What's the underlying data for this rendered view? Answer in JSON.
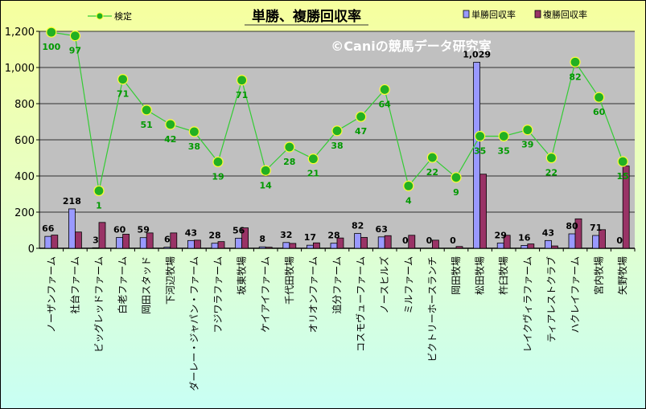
{
  "chart_data": {
    "type": "bar",
    "title": "単勝、複勝回収率",
    "watermark": "©Caniの競馬データ研究室",
    "categories": [
      "ノーザンファーム",
      "社台ファーム",
      "ビッグレッドファーム",
      "白老ファーム",
      "岡田スタッド",
      "下河辺牧場",
      "ダーレー・ジャパン・ファーム",
      "フジワラファーム",
      "坂東牧場",
      "ケイアイファーム",
      "千代田牧場",
      "オリオンファーム",
      "追分ファーム",
      "コスモヴューファーム",
      "ノースヒルズ",
      "ミルファーム",
      "ビクトリーホースランチ",
      "岡田牧場",
      "松田牧場",
      "杵臼牧場",
      "レイクヴィラファーム",
      "ティアレストクラブ",
      "ハクレイファーム",
      "宮内牧場",
      "矢野牧場"
    ],
    "series": [
      {
        "name": "単勝回収率",
        "type": "bar",
        "color": "#9999ff",
        "values": [
          66,
          218,
          3,
          60,
          59,
          6,
          43,
          28,
          56,
          8,
          32,
          17,
          28,
          82,
          63,
          0,
          0,
          0,
          1029,
          29,
          16,
          43,
          80,
          71,
          0
        ],
        "labels": [
          "66",
          "218",
          "3",
          "60",
          "59",
          "6",
          "43",
          "28",
          "56",
          "8",
          "32",
          "17",
          "28",
          "82",
          "63",
          "0",
          "0",
          "0",
          "1,029",
          "29",
          "16",
          "43",
          "80",
          "71",
          "0"
        ]
      },
      {
        "name": "複勝回収率",
        "type": "bar",
        "color": "#993366",
        "values": [
          73,
          90,
          143,
          78,
          85,
          85,
          45,
          37,
          113,
          6,
          27,
          30,
          57,
          60,
          70,
          72,
          45,
          10,
          410,
          72,
          24,
          13,
          163,
          103,
          455
        ]
      },
      {
        "name": "検定",
        "type": "line",
        "color": "#33cc33",
        "values": [
          1195,
          1175,
          318,
          935,
          765,
          685,
          645,
          478,
          930,
          430,
          560,
          495,
          650,
          728,
          878,
          345,
          502,
          392,
          620,
          620,
          655,
          500,
          1030,
          835,
          480
        ],
        "labels": [
          "100",
          "97",
          "1",
          "71",
          "51",
          "42",
          "38",
          "19",
          "71",
          "14",
          "28",
          "21",
          "38",
          "47",
          "64",
          "4",
          "22",
          "9",
          "35",
          "35",
          "39",
          "22",
          "82",
          "60",
          "15"
        ]
      }
    ],
    "ylim": [
      0,
      1200
    ],
    "yticks": [
      "0",
      "200",
      "400",
      "600",
      "800",
      "1,000",
      "1,200"
    ],
    "grid": true,
    "legend_position": "top"
  },
  "colors": {
    "plot_bg": "#c0c0c0",
    "bar1": "#9999ff",
    "bar2": "#993366",
    "line": "#33cc33",
    "line_label": "#009900",
    "title_line": "#333333",
    "watermark": "#ffffff"
  }
}
